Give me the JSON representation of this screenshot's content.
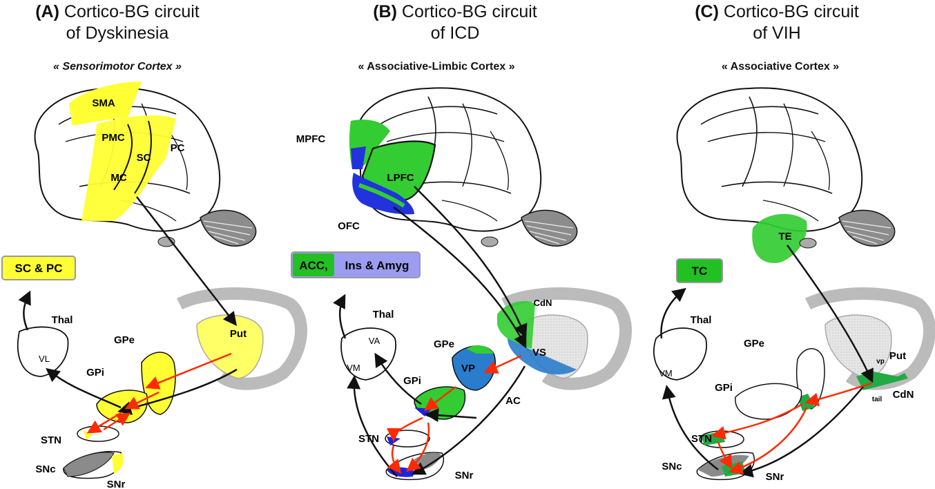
{
  "panels": {
    "a": {
      "letter": "(A)",
      "title_line1": "Cortico-BG circuit",
      "title_line2": "of Dyskinesia",
      "cortex": "« Sensorimotor Cortex »",
      "regions": [
        "SMA",
        "PMC",
        "SC",
        "PC",
        "MC"
      ],
      "output_box": "SC & PC",
      "thal": "Thal",
      "thal_nucleus": "VL",
      "gpe": "GPe",
      "gpi": "GPi",
      "stn": "STN",
      "snc": "SNc",
      "snr": "SNr",
      "striatum": "Put"
    },
    "b": {
      "letter": "(B)",
      "title_line1": "Cortico-BG circuit",
      "title_line2": "of ICD",
      "cortex": "« Associative-Limbic Cortex »",
      "regions": [
        "MPFC",
        "LPFC",
        "OFC"
      ],
      "output_box_left": "ACC,",
      "output_box_right": "Ins & Amyg",
      "thal": "Thal",
      "thal_nucleus_1": "VA",
      "thal_nucleus_2": "VM",
      "gpe": "GPe",
      "vp": "VP",
      "gpi": "GPi",
      "stn": "STN",
      "snr": "SNr",
      "cdn": "CdN",
      "vs": "VS",
      "ac": "AC"
    },
    "c": {
      "letter": "(C)",
      "title_line1": "Cortico-BG circuit",
      "title_line2": "of VIH",
      "cortex": "« Associative Cortex »",
      "regions": [
        "TE"
      ],
      "output_box": "TC",
      "thal": "Thal",
      "thal_nucleus": "VM",
      "gpe": "GPe",
      "gpi": "GPi",
      "stn": "STN",
      "snc": "SNc",
      "snr": "SNr",
      "put_prefix": "vp",
      "put": "Put",
      "cdn_prefix": "tail",
      "cdn": "CdN"
    }
  },
  "colors": {
    "yellow": "#ffff33",
    "green": "#22c022",
    "blue": "#2222dd",
    "steel_blue": "#2a7ccc",
    "lavender": "#9c9cf0",
    "red_arrow": "#ff2a00",
    "gray_fill": "#d8d8d8",
    "dark_gray": "#8a8a8a"
  }
}
